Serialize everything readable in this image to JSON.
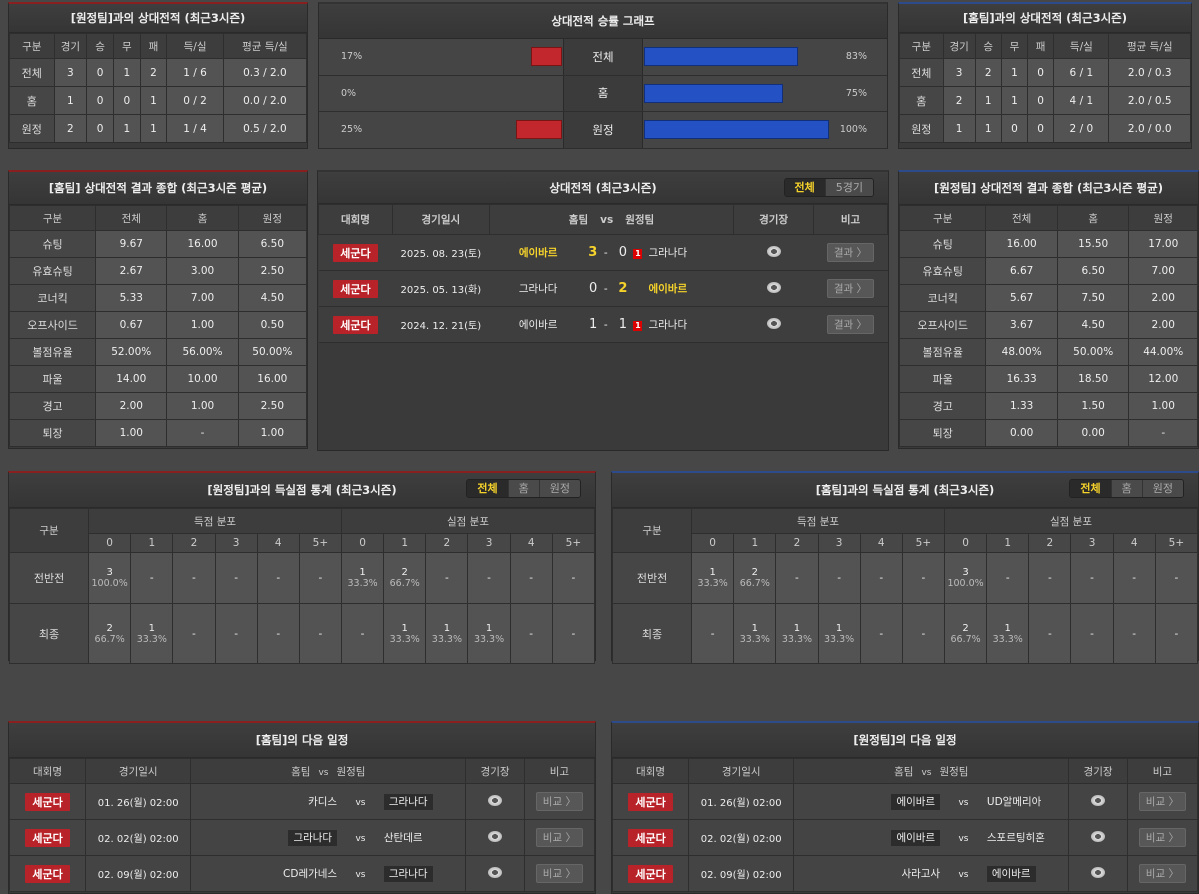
{
  "away_h2h": {
    "title": "[원정팀]과의 상대전적 (최근3시즌)",
    "headers": [
      "구분",
      "경기",
      "승",
      "무",
      "패",
      "득/실",
      "평균 득/실"
    ],
    "rows": [
      [
        "전체",
        "3",
        "0",
        "1",
        "2",
        "1 / 6",
        "0.3 / 2.0"
      ],
      [
        "홈",
        "1",
        "0",
        "0",
        "1",
        "0 / 2",
        "0.0 / 2.0"
      ],
      [
        "원정",
        "2",
        "0",
        "1",
        "1",
        "1 / 4",
        "0.5 / 2.0"
      ]
    ]
  },
  "graph": {
    "title": "상대전적 승률 그래프",
    "rows": [
      {
        "label": "전체",
        "left": "17%",
        "right": "83%"
      },
      {
        "label": "홈",
        "left": "0%",
        "right": "75%"
      },
      {
        "label": "원정",
        "left": "25%",
        "right": "100%"
      }
    ],
    "left_color": "#c1272d",
    "right_color": "#2451c4"
  },
  "home_h2h": {
    "title": "[홈팀]과의 상대전적 (최근3시즌)",
    "headers": [
      "구분",
      "경기",
      "승",
      "무",
      "패",
      "득/실",
      "평균 득/실"
    ],
    "rows": [
      [
        "전체",
        "3",
        "2",
        "1",
        "0",
        "6 / 1",
        "2.0 / 0.3"
      ],
      [
        "홈",
        "2",
        "1",
        "1",
        "0",
        "4 / 1",
        "2.0 / 0.5"
      ],
      [
        "원정",
        "1",
        "1",
        "0",
        "0",
        "2 / 0",
        "2.0 / 0.0"
      ]
    ]
  },
  "home_summary": {
    "title": "[홈팀] 상대전적 결과 종합 (최근3시즌 평균)",
    "headers": [
      "구분",
      "전체",
      "홈",
      "원정"
    ],
    "rows": [
      [
        "슈팅",
        "9.67",
        "16.00",
        "6.50"
      ],
      [
        "유효슈팅",
        "2.67",
        "3.00",
        "2.50"
      ],
      [
        "코너킥",
        "5.33",
        "7.00",
        "4.50"
      ],
      [
        "오프사이드",
        "0.67",
        "1.00",
        "0.50"
      ],
      [
        "볼점유율",
        "52.00%",
        "56.00%",
        "50.00%"
      ],
      [
        "파울",
        "14.00",
        "10.00",
        "16.00"
      ],
      [
        "경고",
        "2.00",
        "1.00",
        "2.50"
      ],
      [
        "퇴장",
        "1.00",
        "-",
        "1.00"
      ]
    ]
  },
  "away_summary": {
    "title": "[원정팀] 상대전적 결과 종합 (최근3시즌 평균)",
    "headers": [
      "구분",
      "전체",
      "홈",
      "원정"
    ],
    "rows": [
      [
        "슈팅",
        "16.00",
        "15.50",
        "17.00"
      ],
      [
        "유효슈팅",
        "6.67",
        "6.50",
        "7.00"
      ],
      [
        "코너킥",
        "5.67",
        "7.50",
        "2.00"
      ],
      [
        "오프사이드",
        "3.67",
        "4.50",
        "2.00"
      ],
      [
        "볼점유율",
        "48.00%",
        "50.00%",
        "44.00%"
      ],
      [
        "파울",
        "16.33",
        "18.50",
        "12.00"
      ],
      [
        "경고",
        "1.33",
        "1.50",
        "1.00"
      ],
      [
        "퇴장",
        "0.00",
        "0.00",
        "-"
      ]
    ]
  },
  "h2h": {
    "title": "상대전적 (최근3시즌)",
    "tabs": [
      "전체",
      "5경기"
    ],
    "headers": {
      "league": "대회명",
      "date": "경기일시",
      "home": "홈팀",
      "vs": "vs",
      "away": "원정팀",
      "stadium": "경기장",
      "note": "비고"
    },
    "matches": [
      {
        "league": "세군다",
        "date": "2025. 08. 23(토)",
        "home": "에이바르",
        "score_home": "3",
        "dash": "-",
        "score_away": "0",
        "red_card": "1",
        "away": "그라나다",
        "winner": "home",
        "button": "결과 〉"
      },
      {
        "league": "세군다",
        "date": "2025. 05. 13(화)",
        "home": "그라나다",
        "score_home": "0",
        "dash": "-",
        "score_away": "2",
        "red_card": null,
        "away": "에이바르",
        "winner": "away",
        "button": "결과 〉"
      },
      {
        "league": "세군다",
        "date": "2024. 12. 21(토)",
        "home": "에이바르",
        "score_home": "1",
        "dash": "-",
        "score_away": "1",
        "red_card": "1",
        "away": "그라나다",
        "winner": null,
        "button": "결과 〉"
      }
    ]
  },
  "goals_away": {
    "title": "[원정팀]과의 득실점 통계 (최근3시즌)",
    "tabs": [
      "전체",
      "홈",
      "원정"
    ],
    "label_header": "구분",
    "scored_header": "득점 분포",
    "conceded_header": "실점 분포",
    "buckets": [
      "0",
      "1",
      "2",
      "3",
      "4",
      "5+"
    ],
    "rows": [
      {
        "label": "전반전",
        "scored": [
          [
            "3",
            "100.0%"
          ],
          null,
          null,
          null,
          null,
          null
        ],
        "conceded": [
          [
            "1",
            "33.3%"
          ],
          [
            "2",
            "66.7%"
          ],
          null,
          null,
          null,
          null
        ]
      },
      {
        "label": "최종",
        "scored": [
          [
            "2",
            "66.7%"
          ],
          [
            "1",
            "33.3%"
          ],
          null,
          null,
          null,
          null
        ],
        "conceded": [
          null,
          [
            "1",
            "33.3%"
          ],
          [
            "1",
            "33.3%"
          ],
          [
            "1",
            "33.3%"
          ],
          null,
          null
        ]
      }
    ],
    "empty": "-"
  },
  "goals_home": {
    "title": "[홈팀]과의 득실점 통계 (최근3시즌)",
    "tabs": [
      "전체",
      "홈",
      "원정"
    ],
    "label_header": "구분",
    "scored_header": "득점 분포",
    "conceded_header": "실점 분포",
    "buckets": [
      "0",
      "1",
      "2",
      "3",
      "4",
      "5+"
    ],
    "rows": [
      {
        "label": "전반전",
        "scored": [
          [
            "1",
            "33.3%"
          ],
          [
            "2",
            "66.7%"
          ],
          null,
          null,
          null,
          null
        ],
        "conceded": [
          [
            "3",
            "100.0%"
          ],
          null,
          null,
          null,
          null,
          null
        ]
      },
      {
        "label": "최종",
        "scored": [
          null,
          [
            "1",
            "33.3%"
          ],
          [
            "1",
            "33.3%"
          ],
          [
            "1",
            "33.3%"
          ],
          null,
          null
        ],
        "conceded": [
          [
            "2",
            "66.7%"
          ],
          [
            "1",
            "33.3%"
          ],
          null,
          null,
          null,
          null
        ]
      }
    ],
    "empty": "-"
  },
  "sched_home": {
    "title": "[홈팀]의 다음 일정",
    "headers": {
      "league": "대회명",
      "date": "경기일시",
      "home": "홈팀",
      "vs": "vs",
      "away": "원정팀",
      "stadium": "경기장",
      "note": "비고"
    },
    "matches": [
      {
        "league": "세군다",
        "date": "01. 26(월) 02:00",
        "home": "카디스",
        "vs": "vs",
        "away": "그라나다",
        "highlight": "away",
        "button": "비교 〉"
      },
      {
        "league": "세군다",
        "date": "02. 02(월) 02:00",
        "home": "그라나다",
        "vs": "vs",
        "away": "산탄데르",
        "highlight": "home",
        "button": "비교 〉"
      },
      {
        "league": "세군다",
        "date": "02. 09(월) 02:00",
        "home": "CD레가네스",
        "vs": "vs",
        "away": "그라나다",
        "highlight": "away",
        "button": "비교 〉"
      }
    ]
  },
  "sched_away": {
    "title": "[원정팀]의 다음 일정",
    "headers": {
      "league": "대회명",
      "date": "경기일시",
      "home": "홈팀",
      "vs": "vs",
      "away": "원정팀",
      "stadium": "경기장",
      "note": "비고"
    },
    "matches": [
      {
        "league": "세군다",
        "date": "01. 26(월) 02:00",
        "home": "에이바르",
        "vs": "vs",
        "away": "UD알메리아",
        "highlight": "home",
        "button": "비교 〉"
      },
      {
        "league": "세군다",
        "date": "02. 02(월) 02:00",
        "home": "에이바르",
        "vs": "vs",
        "away": "스포르팅히혼",
        "highlight": "home",
        "button": "비교 〉"
      },
      {
        "league": "세군다",
        "date": "02. 09(월) 02:00",
        "home": "사라고사",
        "vs": "vs",
        "away": "에이바르",
        "highlight": "away",
        "button": "비교 〉"
      }
    ]
  }
}
